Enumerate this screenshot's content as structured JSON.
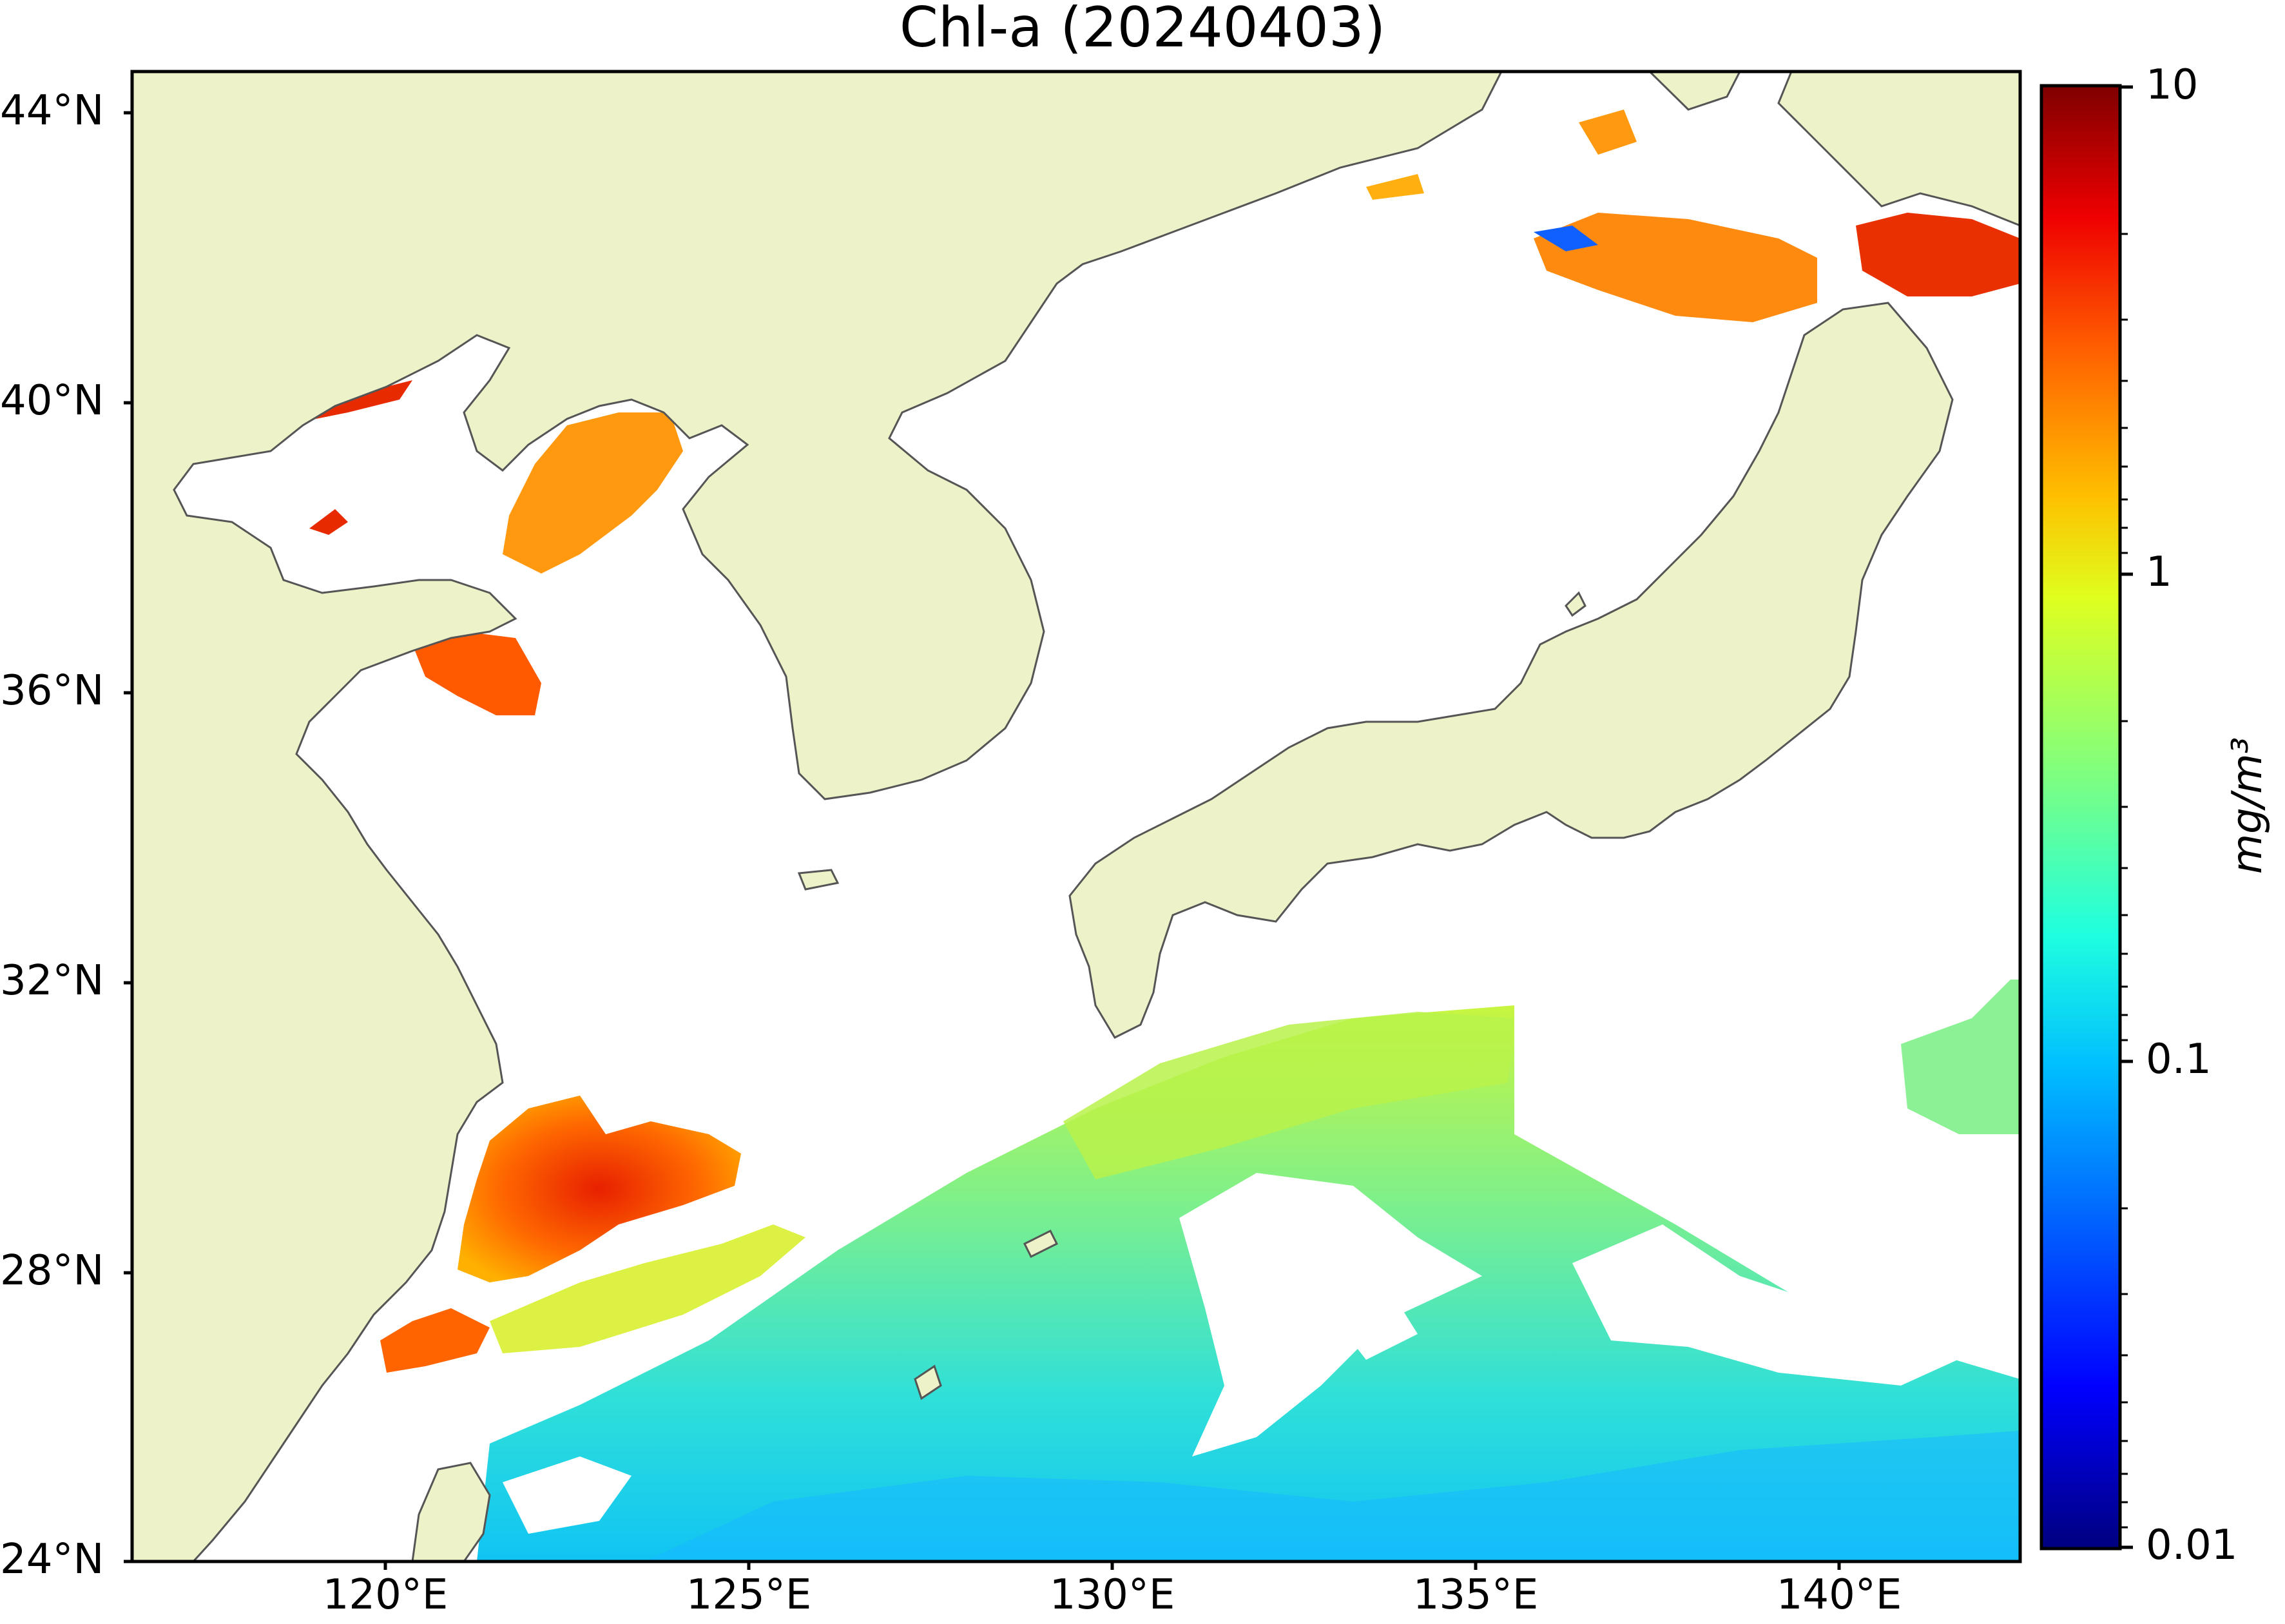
{
  "title": "Chl-a (20240403)",
  "map": {
    "lat_labels": [
      "44°N",
      "40°N",
      "36°N",
      "32°N",
      "28°N",
      "24°N"
    ],
    "lon_labels": [
      "120°E",
      "125°E",
      "130°E",
      "135°E",
      "140°E"
    ],
    "lat_range": [
      24,
      44.5
    ],
    "lon_range": [
      117,
      143
    ],
    "land_color": "#eef2c8",
    "ocean_no_data_color": "#ffffff",
    "coastline_color": "#555555"
  },
  "colorbar": {
    "tick_labels": [
      "10",
      "1",
      "0.1",
      "0.01"
    ],
    "unit": "mg/m³",
    "scale": "log",
    "range": [
      0.01,
      10
    ],
    "colormap": "jet",
    "colors": [
      "#00007f",
      "#0000ff",
      "#007fff",
      "#00ffff",
      "#7fff7f",
      "#ffff00",
      "#ff7f00",
      "#ff0000",
      "#7f0000"
    ]
  }
}
